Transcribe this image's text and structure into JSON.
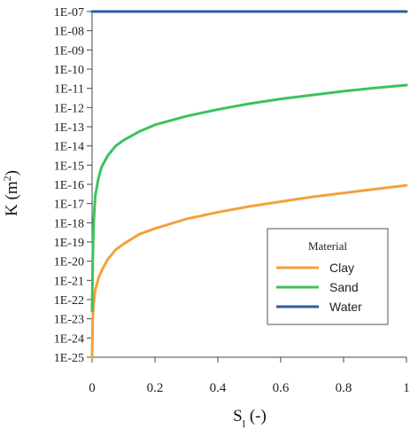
{
  "chart_data": {
    "type": "line",
    "xlabel": "S",
    "xlabel_subscript": "l",
    "xlabel_suffix": " (-)",
    "ylabel": "K  (m",
    "ylabel_superscript": "2",
    "ylabel_suffix": ")",
    "xlim": [
      0,
      1
    ],
    "ylim_log10": [
      -25,
      -7
    ],
    "y_scale": "log",
    "grid": false,
    "legend_position": "bottom-right",
    "legend_title": "Material",
    "x_ticks": [
      "0",
      "0.2",
      "0.4",
      "0.6",
      "0.8",
      "1"
    ],
    "x_tick_values": [
      0,
      0.2,
      0.4,
      0.6,
      0.8,
      1
    ],
    "y_ticks": [
      "1E-07",
      "1E-08",
      "1E-09",
      "1E-10",
      "1E-11",
      "1E-12",
      "1E-13",
      "1E-14",
      "1E-15",
      "1E-16",
      "1E-17",
      "1E-18",
      "1E-19",
      "1E-20",
      "1E-21",
      "1E-22",
      "1E-23",
      "1E-24",
      "1E-25"
    ],
    "y_tick_exponents": [
      -7,
      -8,
      -9,
      -10,
      -11,
      -12,
      -13,
      -14,
      -15,
      -16,
      -17,
      -18,
      -19,
      -20,
      -21,
      -22,
      -23,
      -24,
      -25
    ],
    "series": [
      {
        "name": "Clay",
        "color": "#f5a03a",
        "x": [
          0.0,
          0.002,
          0.005,
          0.01,
          0.02,
          0.03,
          0.05,
          0.075,
          0.1,
          0.15,
          0.2,
          0.3,
          0.4,
          0.5,
          0.6,
          0.7,
          0.8,
          0.9,
          1.0
        ],
        "y_log10": [
          -25.0,
          -23.0,
          -22.2,
          -21.5,
          -20.9,
          -20.5,
          -19.9,
          -19.4,
          -19.1,
          -18.6,
          -18.3,
          -17.8,
          -17.45,
          -17.15,
          -16.9,
          -16.65,
          -16.45,
          -16.25,
          -16.05
        ]
      },
      {
        "name": "Sand",
        "color": "#3cc35a",
        "x": [
          0.0,
          0.002,
          0.005,
          0.01,
          0.02,
          0.03,
          0.05,
          0.075,
          0.1,
          0.15,
          0.2,
          0.3,
          0.4,
          0.5,
          0.6,
          0.7,
          0.8,
          0.9,
          1.0
        ],
        "y_log10": [
          -22.6,
          -20.0,
          -18.0,
          -16.6,
          -15.7,
          -15.1,
          -14.5,
          -14.0,
          -13.7,
          -13.25,
          -12.9,
          -12.45,
          -12.1,
          -11.8,
          -11.55,
          -11.35,
          -11.15,
          -10.98,
          -10.83
        ]
      },
      {
        "name": "Water",
        "color": "#2f5e9e",
        "x": [
          0.0,
          1.0
        ],
        "y_log10": [
          -7.0,
          -7.0
        ]
      }
    ]
  }
}
